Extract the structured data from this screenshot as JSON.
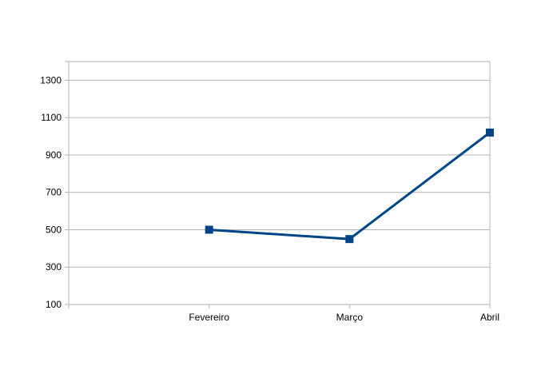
{
  "chart_data": {
    "type": "line",
    "title": "",
    "xlabel": "",
    "ylabel": "",
    "categories": [
      "",
      "Fevereiro",
      "Março",
      "Abril"
    ],
    "series": [
      {
        "values": [
          null,
          500,
          450,
          1020
        ],
        "color": "#004586"
      }
    ],
    "ylim": [
      100,
      1400
    ],
    "yticks": [
      100,
      300,
      500,
      700,
      900,
      1100,
      1300
    ],
    "grid": true,
    "legend": "none",
    "marker": "square"
  }
}
